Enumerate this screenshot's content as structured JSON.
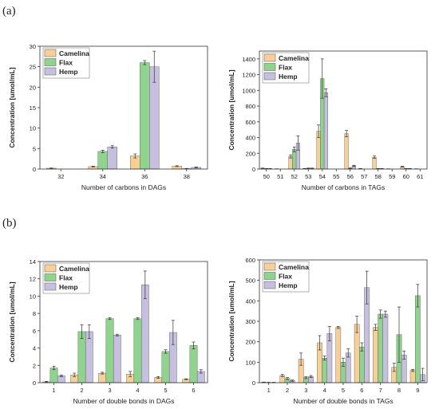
{
  "panels": {
    "a": "(a)",
    "b": "(b)"
  },
  "colors": {
    "Camelina": "#f9cf96",
    "Flax": "#8fd48c",
    "Hemp": "#c6bfe0"
  },
  "chart_data": [
    {
      "type": "bar",
      "title": "",
      "xlabel": "Number of carbons in DAGs",
      "ylabel": "Concentration [umol/mL]",
      "categories": [
        "32",
        "34",
        "36",
        "38"
      ],
      "ylim": [
        0,
        30
      ],
      "yticks": [
        0,
        5,
        10,
        15,
        20,
        25,
        30
      ],
      "legend": "top-left",
      "grid": false,
      "series": [
        {
          "name": "Camelina",
          "values": [
            0.2,
            0.6,
            3.2,
            0.7
          ],
          "errors": [
            0.05,
            0.1,
            0.5,
            0.1
          ]
        },
        {
          "name": "Flax",
          "values": [
            0,
            4.3,
            26.0,
            0.1
          ],
          "errors": [
            0,
            0.3,
            0.5,
            0.05
          ]
        },
        {
          "name": "Hemp",
          "values": [
            0,
            5.4,
            25.0,
            0.4
          ],
          "errors": [
            0,
            0.3,
            3.8,
            0.1
          ]
        }
      ]
    },
    {
      "type": "bar",
      "title": "",
      "xlabel": "Number of carbons in TAGs",
      "ylabel": "Concentration [umol/mL]",
      "categories": [
        "50",
        "51",
        "52",
        "53",
        "54",
        "55",
        "56",
        "57",
        "58",
        "59",
        "60",
        "61"
      ],
      "ylim": [
        0,
        1500
      ],
      "yticks": [
        0,
        200,
        400,
        600,
        800,
        1000,
        1200,
        1400
      ],
      "legend": "top-left",
      "grid": false,
      "series": [
        {
          "name": "Camelina",
          "values": [
            10,
            2,
            160,
            5,
            480,
            0,
            450,
            5,
            150,
            2,
            30,
            2
          ],
          "errors": [
            2,
            1,
            20,
            2,
            80,
            0,
            40,
            2,
            15,
            1,
            5,
            1
          ]
        },
        {
          "name": "Flax",
          "values": [
            5,
            0,
            250,
            10,
            1150,
            0,
            10,
            0,
            5,
            0,
            5,
            0
          ],
          "errors": [
            1,
            0,
            30,
            2,
            250,
            0,
            3,
            0,
            2,
            0,
            2,
            0
          ]
        },
        {
          "name": "Hemp",
          "values": [
            5,
            0,
            330,
            10,
            970,
            0,
            40,
            0,
            5,
            0,
            5,
            0
          ],
          "errors": [
            1,
            0,
            90,
            2,
            50,
            0,
            8,
            0,
            2,
            0,
            2,
            0
          ]
        }
      ]
    },
    {
      "type": "bar",
      "title": "",
      "xlabel": "Number of double bonds in DAGs",
      "ylabel": "Concentration [umol/mL]",
      "categories": [
        "1",
        "2",
        "3",
        "4",
        "5",
        "6"
      ],
      "ylim": [
        0,
        14
      ],
      "yticks": [
        0,
        2,
        4,
        6,
        8,
        10,
        12,
        14
      ],
      "legend": "top-left",
      "grid": false,
      "series": [
        {
          "name": "Camelina",
          "values": [
            0.1,
            0.9,
            1.1,
            1.0,
            0.6,
            0.4
          ],
          "errors": [
            0.05,
            0.2,
            0.1,
            0.3,
            0.1,
            0.05
          ]
        },
        {
          "name": "Flax",
          "values": [
            1.7,
            5.9,
            7.4,
            7.4,
            3.6,
            4.3
          ],
          "errors": [
            0.2,
            0.8,
            0.1,
            0.1,
            0.2,
            0.4
          ]
        },
        {
          "name": "Hemp",
          "values": [
            0.8,
            5.9,
            5.5,
            11.3,
            5.8,
            1.3
          ],
          "errors": [
            0.1,
            0.8,
            0.1,
            1.6,
            1.4,
            0.2
          ]
        }
      ]
    },
    {
      "type": "bar",
      "title": "",
      "xlabel": "Number of double bonds in TAGs",
      "ylabel": "Concentration [umol/mL]",
      "categories": [
        "1",
        "2",
        "3",
        "4",
        "5",
        "6",
        "7",
        "8",
        "9"
      ],
      "ylim": [
        0,
        600
      ],
      "yticks": [
        0,
        100,
        200,
        300,
        400,
        500,
        600
      ],
      "legend": "top-left",
      "grid": false,
      "series": [
        {
          "name": "Camelina",
          "values": [
            2,
            35,
            115,
            195,
            270,
            285,
            270,
            75,
            60
          ],
          "errors": [
            1,
            5,
            30,
            35,
            5,
            40,
            15,
            20,
            5
          ]
        },
        {
          "name": "Flax",
          "values": [
            1,
            20,
            25,
            120,
            100,
            175,
            335,
            235,
            425
          ],
          "errors": [
            1,
            5,
            5,
            10,
            20,
            20,
            20,
            135,
            55
          ]
        },
        {
          "name": "Hemp",
          "values": [
            1,
            10,
            30,
            240,
            145,
            465,
            335,
            135,
            40
          ],
          "errors": [
            1,
            3,
            5,
            35,
            20,
            80,
            15,
            20,
            30
          ]
        }
      ]
    }
  ]
}
